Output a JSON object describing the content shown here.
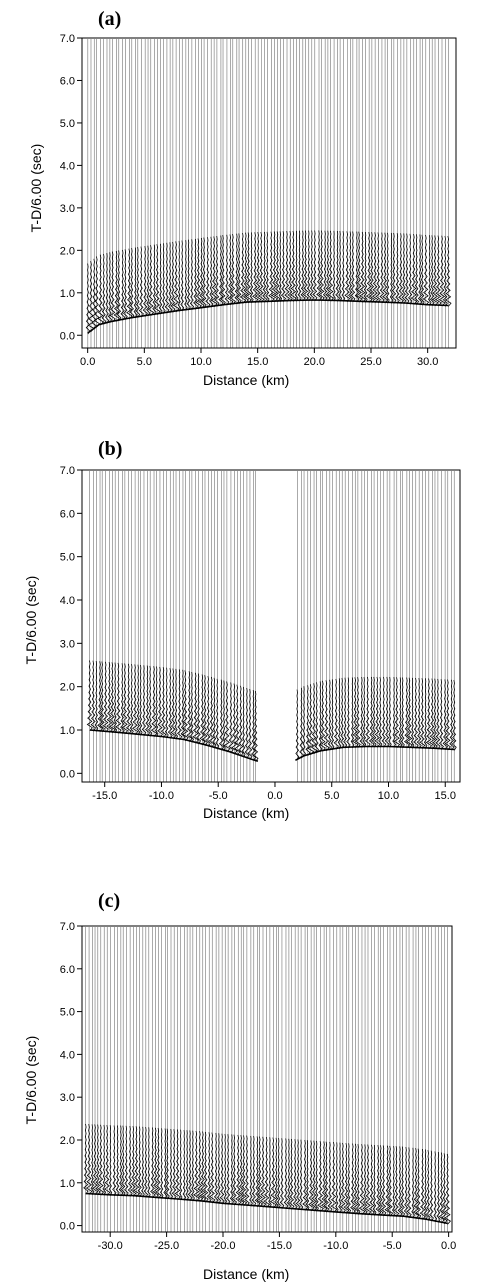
{
  "chart_data": [
    {
      "type": "line",
      "panel": "(a)",
      "xlabel": "Distance (km)",
      "ylabel": "T-D/6.00 (sec)",
      "xlim": [
        -0.5,
        32.5
      ],
      "ylim": [
        -0.3,
        7.0
      ],
      "xticks": [
        0,
        5,
        10,
        15,
        20,
        25,
        30
      ],
      "xtick_labels": [
        "0.0",
        "5.0",
        "10.0",
        "15.0",
        "20.0",
        "25.0",
        "30.0"
      ],
      "yticks": [
        0,
        1,
        2,
        3,
        4,
        5,
        6,
        7
      ],
      "ytick_labels": [
        "0.0",
        "1.0",
        "2.0",
        "3.0",
        "4.0",
        "5.0",
        "6.0",
        "7.0"
      ],
      "trace_range": [
        0.0,
        31.8
      ],
      "gap": null,
      "first_arrival": {
        "x": [
          0.0,
          1.0,
          2.0,
          4.0,
          6.0,
          8.0,
          10.0,
          12.0,
          14.0,
          16.0,
          18.0,
          20.0,
          22.0,
          24.0,
          26.0,
          28.0,
          30.0,
          31.8
        ],
        "y": [
          0.05,
          0.25,
          0.32,
          0.42,
          0.5,
          0.58,
          0.65,
          0.72,
          0.78,
          0.8,
          0.82,
          0.83,
          0.82,
          0.8,
          0.78,
          0.76,
          0.72,
          0.7
        ]
      }
    },
    {
      "type": "line",
      "panel": "(b)",
      "xlabel": "Distance (km)",
      "ylabel": "T-D/6.00 (sec)",
      "xlim": [
        -17.0,
        16.3
      ],
      "ylim": [
        -0.2,
        7.0
      ],
      "xticks": [
        -15,
        -10,
        -5,
        0,
        5,
        10,
        15
      ],
      "xtick_labels": [
        "-15.0",
        "-10.0",
        "-5.0",
        "0.0",
        "5.0",
        "10.0",
        "15.0"
      ],
      "yticks": [
        0,
        1,
        2,
        3,
        4,
        5,
        6,
        7
      ],
      "ytick_labels": [
        "0.0",
        "1.0",
        "2.0",
        "3.0",
        "4.0",
        "5.0",
        "6.0",
        "7.0"
      ],
      "trace_range": [
        -16.3,
        15.8
      ],
      "gap": [
        -1.5,
        1.8
      ],
      "first_arrival": {
        "x": [
          -16.3,
          -14.0,
          -12.0,
          -10.0,
          -8.0,
          -6.0,
          -4.0,
          -2.0,
          -1.5,
          1.8,
          2.5,
          4.0,
          6.0,
          8.0,
          10.0,
          12.0,
          14.0,
          15.8
        ],
        "y": [
          1.0,
          0.95,
          0.9,
          0.85,
          0.78,
          0.65,
          0.5,
          0.32,
          0.28,
          0.3,
          0.4,
          0.52,
          0.6,
          0.62,
          0.62,
          0.6,
          0.58,
          0.55
        ]
      }
    },
    {
      "type": "line",
      "panel": "(c)",
      "xlabel": "Distance (km)",
      "ylabel": "T-D/6.00 (sec)",
      "xlim": [
        -32.5,
        0.3
      ],
      "ylim": [
        -0.15,
        7.0
      ],
      "xticks": [
        -30,
        -25,
        -20,
        -15,
        -10,
        -5,
        0
      ],
      "xtick_labels": [
        "-30.0",
        "-25.0",
        "-20.0",
        "-15.0",
        "-10.0",
        "-5.0",
        "0.0"
      ],
      "yticks": [
        0,
        1,
        2,
        3,
        4,
        5,
        6,
        7
      ],
      "ytick_labels": [
        "0.0",
        "1.0",
        "2.0",
        "3.0",
        "4.0",
        "5.0",
        "6.0",
        "7.0"
      ],
      "trace_range": [
        -32.2,
        -0.1
      ],
      "gap": null,
      "first_arrival": {
        "x": [
          -32.2,
          -30.0,
          -28.0,
          -26.0,
          -24.0,
          -22.0,
          -20.0,
          -18.0,
          -16.0,
          -14.0,
          -12.0,
          -10.0,
          -8.0,
          -6.0,
          -4.0,
          -2.0,
          -0.1
        ],
        "y": [
          0.75,
          0.72,
          0.7,
          0.66,
          0.62,
          0.58,
          0.52,
          0.48,
          0.44,
          0.4,
          0.36,
          0.32,
          0.28,
          0.25,
          0.22,
          0.15,
          0.05
        ]
      }
    }
  ]
}
